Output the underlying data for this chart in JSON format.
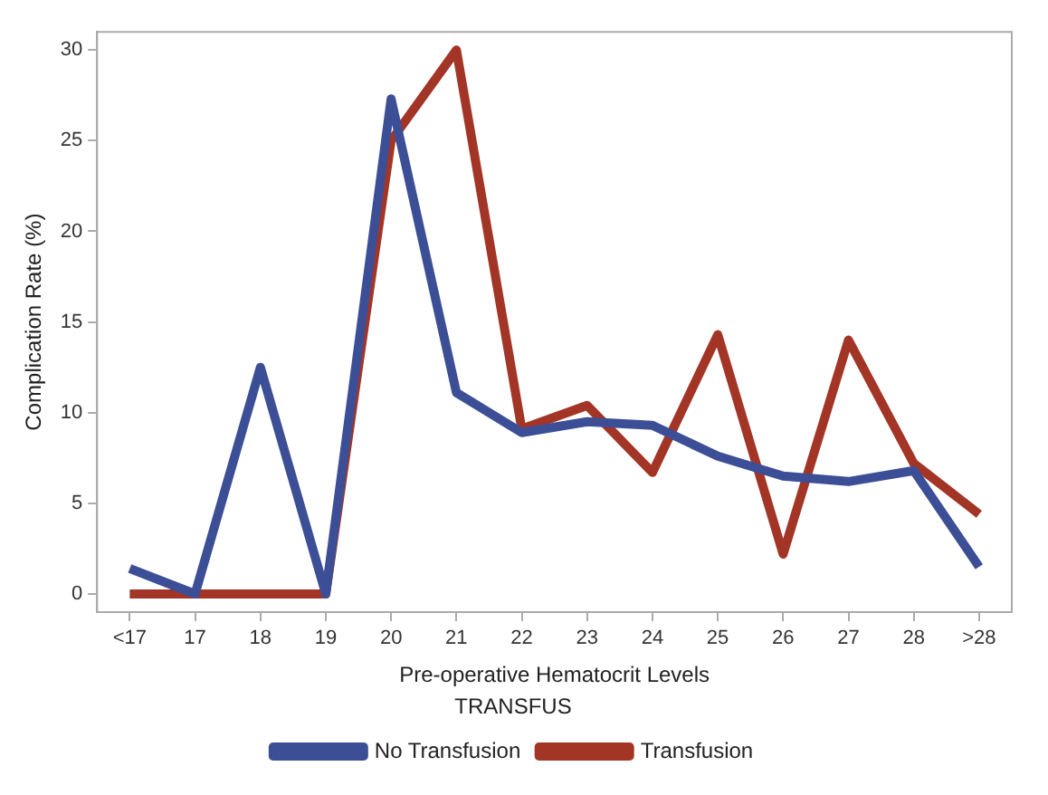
{
  "chart_data": {
    "type": "line",
    "xlabel": "Pre-operative Hematocrit Levels",
    "ylabel": "Complication Rate (%)",
    "legend_title": "TRANSFUS",
    "categories": [
      "<17",
      "17",
      "18",
      "19",
      "20",
      "21",
      "22",
      "23",
      "24",
      "25",
      "26",
      "27",
      "28",
      ">28"
    ],
    "series": [
      {
        "name": "No Transfusion",
        "color": "#3c4f96",
        "values": [
          1.4,
          0,
          12.5,
          0,
          27.3,
          11.1,
          8.9,
          9.5,
          9.3,
          7.6,
          6.5,
          6.2,
          6.8,
          1.5
        ]
      },
      {
        "name": "Transfusion",
        "color": "#a33526",
        "values": [
          0,
          0,
          0,
          0,
          25,
          30,
          9.1,
          10.4,
          6.7,
          14.3,
          2.2,
          14,
          7.2,
          4.4
        ]
      }
    ],
    "ylim": [
      -1,
      31
    ],
    "yticks": [
      0,
      5,
      10,
      15,
      20,
      25,
      30
    ],
    "grid": false,
    "legend": "bottom",
    "marker": "none",
    "line_style": "solid"
  }
}
